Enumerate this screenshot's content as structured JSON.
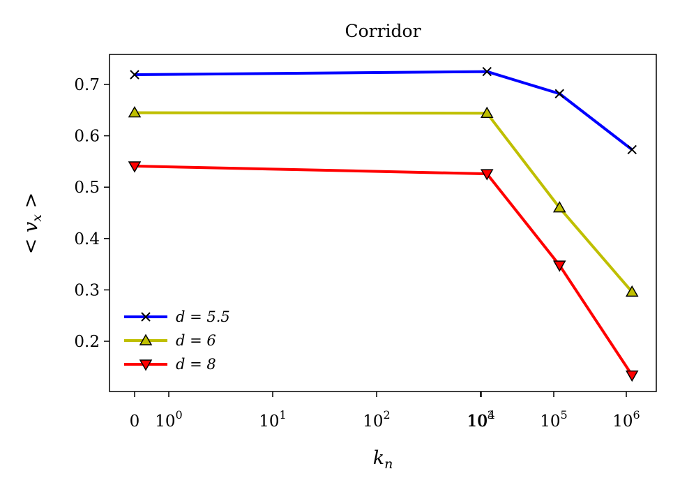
{
  "chart_data": {
    "type": "line",
    "title": "Corridor",
    "xlabel": "k_n",
    "ylabel": "< v_x >",
    "x_scale": "symlog",
    "x_tick_labels": [
      {
        "value": 0,
        "label": "0"
      },
      {
        "value": 1,
        "base": "10",
        "exp": "0"
      },
      {
        "value": 10,
        "base": "10",
        "exp": "1"
      },
      {
        "value": 100,
        "base": "10",
        "exp": "2"
      },
      {
        "value": 1000,
        "base": "10",
        "exp": "3"
      },
      {
        "value": 10000,
        "base": "10",
        "exp": "4"
      },
      {
        "value": 100000,
        "base": "10",
        "exp": "5"
      },
      {
        "value": 1000000,
        "base": "10",
        "exp": "6"
      }
    ],
    "y_ticks": [
      "0.2",
      "0.3",
      "0.4",
      "0.5",
      "0.6",
      "0.7"
    ],
    "ylim": [
      0.1,
      0.76
    ],
    "grid": false,
    "legend_position": "lower-left",
    "x": [
      0,
      12000,
      120000,
      1200000
    ],
    "series": [
      {
        "name": "d = 5.5",
        "color": "#0000ff",
        "marker": "x",
        "values": [
          0.719,
          0.725,
          0.682,
          0.573
        ]
      },
      {
        "name": "d = 6",
        "color": "#bfbf00",
        "marker": "triangle-up",
        "values": [
          0.645,
          0.644,
          0.46,
          0.296
        ]
      },
      {
        "name": "d = 8",
        "color": "#ff0000",
        "marker": "triangle-down",
        "values": [
          0.541,
          0.526,
          0.348,
          0.134
        ]
      }
    ]
  }
}
